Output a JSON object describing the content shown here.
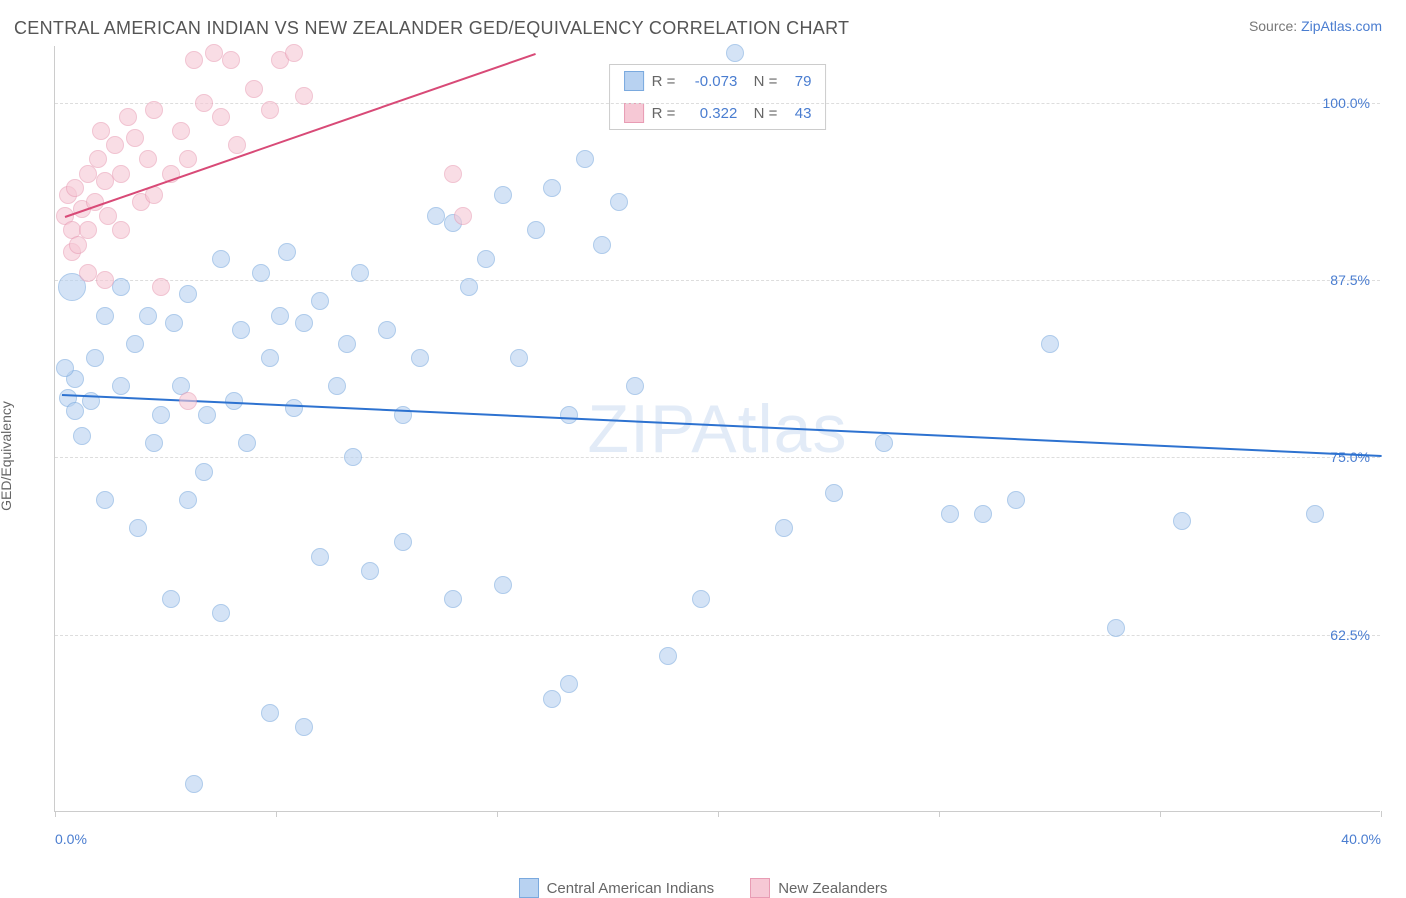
{
  "header": {
    "title": "CENTRAL AMERICAN INDIAN VS NEW ZEALANDER GED/EQUIVALENCY CORRELATION CHART",
    "source_prefix": "Source: ",
    "source_name": "ZipAtlas.com"
  },
  "chart": {
    "type": "scatter",
    "ylabel": "GED/Equivalency",
    "watermark": "ZIPAtlas",
    "background_color": "#ffffff",
    "grid_color": "#dddddd",
    "axis_color": "#cccccc",
    "tick_color": "#4a7dd0",
    "label_color": "#666666",
    "xlim": [
      0,
      40
    ],
    "ylim": [
      50,
      104
    ],
    "xticks": [
      {
        "v": 0,
        "label": "0.0%",
        "show_label": true
      },
      {
        "v": 6.67,
        "label": "",
        "show_label": false
      },
      {
        "v": 13.33,
        "label": "",
        "show_label": false
      },
      {
        "v": 20,
        "label": "",
        "show_label": false
      },
      {
        "v": 26.67,
        "label": "",
        "show_label": false
      },
      {
        "v": 33.33,
        "label": "",
        "show_label": false
      },
      {
        "v": 40,
        "label": "40.0%",
        "show_label": true
      }
    ],
    "yticks": [
      {
        "v": 62.5,
        "label": "62.5%"
      },
      {
        "v": 75.0,
        "label": "75.0%"
      },
      {
        "v": 87.5,
        "label": "87.5%"
      },
      {
        "v": 100.0,
        "label": "100.0%"
      }
    ],
    "series": [
      {
        "name": "Central American Indians",
        "color_fill": "#b8d2f1",
        "color_stroke": "#7aa9de",
        "fill_opacity": 0.6,
        "marker_radius": 9,
        "R": "-0.073",
        "N": "79",
        "trend": {
          "x1": 0.2,
          "y1": 79.5,
          "x2": 40,
          "y2": 75.2,
          "color": "#2d72d0",
          "width": 2
        },
        "points": [
          [
            0.5,
            87.0,
            14
          ],
          [
            0.6,
            80.5,
            9
          ],
          [
            0.4,
            79.2,
            9
          ],
          [
            0.6,
            78.3,
            9
          ],
          [
            0.3,
            81.3,
            9
          ],
          [
            0.8,
            76.5,
            9
          ],
          [
            1.2,
            82.0,
            9
          ],
          [
            1.5,
            85.0,
            9
          ],
          [
            1.1,
            79.0,
            9
          ],
          [
            2.0,
            87.0,
            9
          ],
          [
            2.4,
            83.0,
            9
          ],
          [
            2.0,
            80.0,
            9
          ],
          [
            2.8,
            85.0,
            9
          ],
          [
            3.2,
            78.0,
            9
          ],
          [
            3.6,
            84.5,
            9
          ],
          [
            3.0,
            76.0,
            9
          ],
          [
            3.8,
            80.0,
            9
          ],
          [
            4.0,
            86.5,
            9
          ],
          [
            4.5,
            74.0,
            9
          ],
          [
            1.5,
            72.0,
            9
          ],
          [
            2.5,
            70.0,
            9
          ],
          [
            4.0,
            72.0,
            9
          ],
          [
            4.6,
            78.0,
            9
          ],
          [
            5.0,
            89.0,
            9
          ],
          [
            5.6,
            84.0,
            9
          ],
          [
            5.4,
            79.0,
            9
          ],
          [
            5.8,
            76.0,
            9
          ],
          [
            6.2,
            88.0,
            9
          ],
          [
            6.5,
            82.0,
            9
          ],
          [
            6.8,
            85.0,
            9
          ],
          [
            7.0,
            89.5,
            9
          ],
          [
            7.5,
            84.5,
            9
          ],
          [
            7.2,
            78.5,
            9
          ],
          [
            8.0,
            86.0,
            9
          ],
          [
            8.5,
            80.0,
            9
          ],
          [
            8.8,
            83.0,
            9
          ],
          [
            9.2,
            88.0,
            9
          ],
          [
            9.0,
            75.0,
            9
          ],
          [
            3.5,
            65.0,
            9
          ],
          [
            5.0,
            64.0,
            9
          ],
          [
            4.2,
            52.0,
            9
          ],
          [
            6.5,
            57.0,
            9
          ],
          [
            7.5,
            56.0,
            9
          ],
          [
            8.0,
            68.0,
            9
          ],
          [
            9.5,
            67.0,
            9
          ],
          [
            10.0,
            84.0,
            9
          ],
          [
            10.5,
            78.0,
            9
          ],
          [
            11.0,
            82.0,
            9
          ],
          [
            11.5,
            92.0,
            9
          ],
          [
            12.0,
            91.5,
            9
          ],
          [
            12.5,
            87.0,
            9
          ],
          [
            13.0,
            89.0,
            9
          ],
          [
            13.5,
            93.5,
            9
          ],
          [
            14.0,
            82.0,
            9
          ],
          [
            14.5,
            91.0,
            9
          ],
          [
            15.0,
            94.0,
            9
          ],
          [
            15.5,
            78.0,
            9
          ],
          [
            16.0,
            96.0,
            9
          ],
          [
            16.5,
            90.0,
            9
          ],
          [
            10.5,
            69.0,
            9
          ],
          [
            12.0,
            65.0,
            9
          ],
          [
            13.5,
            66.0,
            9
          ],
          [
            15.0,
            58.0,
            9
          ],
          [
            15.5,
            59.0,
            9
          ],
          [
            17.0,
            93.0,
            9
          ],
          [
            17.5,
            80.0,
            9
          ],
          [
            18.5,
            61.0,
            9
          ],
          [
            19.5,
            65.0,
            9
          ],
          [
            20.5,
            103.5,
            9
          ],
          [
            22.0,
            70.0,
            9
          ],
          [
            25.0,
            76.0,
            9
          ],
          [
            27.0,
            71.0,
            9
          ],
          [
            28.0,
            71.0,
            9
          ],
          [
            29.0,
            72.0,
            9
          ],
          [
            30.0,
            83.0,
            9
          ],
          [
            32.0,
            63.0,
            9
          ],
          [
            38.0,
            71.0,
            9
          ],
          [
            34.0,
            70.5,
            9
          ],
          [
            23.5,
            72.5,
            9
          ]
        ]
      },
      {
        "name": "New Zealanders",
        "color_fill": "#f6c8d5",
        "color_stroke": "#e89cb4",
        "fill_opacity": 0.6,
        "marker_radius": 9,
        "R": "0.322",
        "N": "43",
        "trend": {
          "x1": 0.3,
          "y1": 92.0,
          "x2": 14.5,
          "y2": 103.5,
          "color": "#d84a77",
          "width": 2
        },
        "points": [
          [
            0.3,
            92.0,
            9
          ],
          [
            0.4,
            93.5,
            9
          ],
          [
            0.5,
            91.0,
            9
          ],
          [
            0.6,
            94.0,
            9
          ],
          [
            0.8,
            92.5,
            9
          ],
          [
            0.5,
            89.5,
            9
          ],
          [
            0.7,
            90.0,
            9
          ],
          [
            1.0,
            95.0,
            9
          ],
          [
            1.2,
            93.0,
            9
          ],
          [
            1.0,
            91.0,
            9
          ],
          [
            1.3,
            96.0,
            9
          ],
          [
            1.5,
            94.5,
            9
          ],
          [
            1.6,
            92.0,
            9
          ],
          [
            1.4,
            98.0,
            9
          ],
          [
            1.8,
            97.0,
            9
          ],
          [
            1.0,
            88.0,
            9
          ],
          [
            1.5,
            87.5,
            9
          ],
          [
            2.0,
            95.0,
            9
          ],
          [
            2.2,
            99.0,
            9
          ],
          [
            2.4,
            97.5,
            9
          ],
          [
            2.0,
            91.0,
            9
          ],
          [
            2.6,
            93.0,
            9
          ],
          [
            2.8,
            96.0,
            9
          ],
          [
            3.0,
            99.5,
            9
          ],
          [
            3.2,
            87.0,
            9
          ],
          [
            3.5,
            95.0,
            9
          ],
          [
            3.0,
            93.5,
            9
          ],
          [
            3.8,
            98.0,
            9
          ],
          [
            4.0,
            96.0,
            9
          ],
          [
            4.2,
            103.0,
            9
          ],
          [
            4.5,
            100.0,
            9
          ],
          [
            4.8,
            103.5,
            9
          ],
          [
            5.0,
            99.0,
            9
          ],
          [
            5.3,
            103.0,
            9
          ],
          [
            5.5,
            97.0,
            9
          ],
          [
            6.0,
            101.0,
            9
          ],
          [
            6.5,
            99.5,
            9
          ],
          [
            6.8,
            103.0,
            9
          ],
          [
            7.2,
            103.5,
            9
          ],
          [
            7.5,
            100.5,
            9
          ],
          [
            4.0,
            79.0,
            9
          ],
          [
            12.0,
            95.0,
            9
          ],
          [
            12.3,
            92.0,
            9
          ]
        ]
      }
    ],
    "legend_bottom": [
      {
        "label": "Central American Indians",
        "fill": "#b8d2f1",
        "stroke": "#7aa9de"
      },
      {
        "label": "New Zealanders",
        "fill": "#f6c8d5",
        "stroke": "#e89cb4"
      }
    ]
  }
}
